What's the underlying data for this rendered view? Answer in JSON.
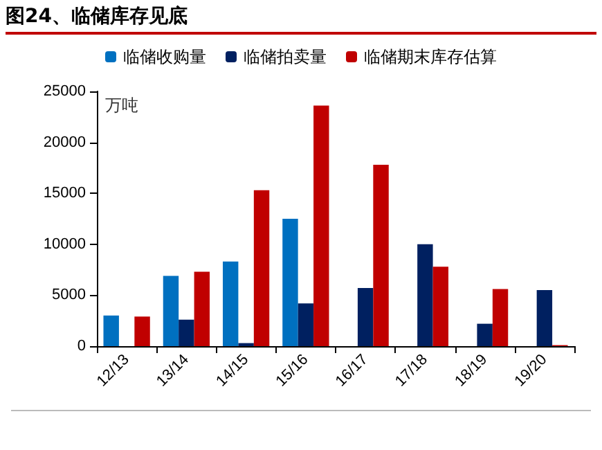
{
  "chart_data": {
    "type": "bar",
    "title": "图24、临储库存见底",
    "ylabel": "万吨",
    "categories": [
      "12/13",
      "13/14",
      "14/15",
      "15/16",
      "16/17",
      "17/18",
      "18/19",
      "19/20"
    ],
    "series": [
      {
        "name": "临储收购量",
        "color": "#0070c0",
        "values": [
          3000,
          6900,
          8300,
          12500,
          null,
          null,
          null,
          null
        ]
      },
      {
        "name": "临储拍卖量",
        "color": "#002060",
        "values": [
          null,
          2600,
          300,
          4200,
          5700,
          10000,
          2200,
          5500
        ]
      },
      {
        "name": "临储期末库存估算",
        "color": "#c00000",
        "values": [
          2900,
          7300,
          15300,
          23600,
          17800,
          7800,
          5600,
          100
        ]
      }
    ],
    "ylim": [
      0,
      25000
    ],
    "yticks": [
      0,
      5000,
      10000,
      15000,
      20000,
      25000
    ],
    "grid": false,
    "legend": "top"
  }
}
